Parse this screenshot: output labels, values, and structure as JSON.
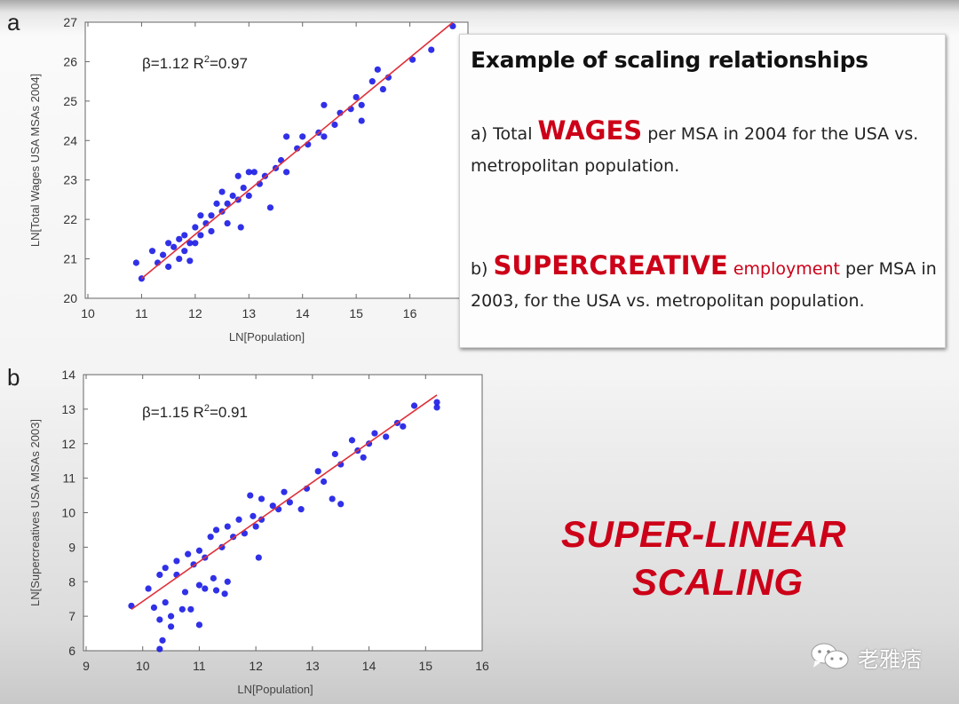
{
  "panels": {
    "a": "a",
    "b": "b"
  },
  "textbox": {
    "title": "Example of scaling relationships",
    "a_prefix": "a) Total",
    "a_highlight": "WAGES",
    "a_rest": "per MSA in 2004 for the USA vs. metropolitan population.",
    "b_prefix": "b)",
    "b_highlight": "SUPERCREATIVE",
    "b_red": "employment",
    "b_rest": "per MSA in 2003, for the USA vs. metropolitan population."
  },
  "slogan": {
    "line1": "SUPER-LINEAR",
    "line2": "SCALING"
  },
  "watermark": {
    "icon": "wechat-icon",
    "text": "老雅痞"
  },
  "colors": {
    "points": "#1a1ae6",
    "fit_line": "#e0303a",
    "accent": "#cc0018"
  },
  "chart_data": [
    {
      "type": "scatter",
      "panel": "a",
      "xlabel": "LN[Population]",
      "ylabel": "LN[Total Wages USA MSAs 2004]",
      "annotation": {
        "beta": "β=1.12",
        "r2_label": "R",
        "r2_exp": "2",
        "r2_value": "=0.97"
      },
      "xlim": [
        10,
        17
      ],
      "ylim": [
        20,
        27
      ],
      "xticks": [
        10,
        11,
        12,
        13,
        14,
        15,
        16
      ],
      "yticks": [
        20,
        21,
        22,
        23,
        24,
        25,
        26,
        27
      ],
      "fit": {
        "slope": 1.12,
        "intercept": 8.18,
        "x_range": [
          11.0,
          16.8
        ]
      },
      "points": [
        [
          10.9,
          20.9
        ],
        [
          11,
          20.5
        ],
        [
          11.2,
          21.2
        ],
        [
          11.3,
          20.9
        ],
        [
          11.4,
          21.1
        ],
        [
          11.5,
          21.4
        ],
        [
          11.5,
          20.8
        ],
        [
          11.6,
          21.3
        ],
        [
          11.7,
          21.5
        ],
        [
          11.7,
          21.0
        ],
        [
          11.8,
          21.6
        ],
        [
          11.8,
          21.2
        ],
        [
          11.9,
          21.4
        ],
        [
          11.9,
          20.95
        ],
        [
          12.0,
          21.8
        ],
        [
          12.0,
          21.4
        ],
        [
          12.1,
          22.1
        ],
        [
          12.1,
          21.6
        ],
        [
          12.2,
          21.9
        ],
        [
          12.3,
          22.1
        ],
        [
          12.3,
          21.7
        ],
        [
          12.4,
          22.4
        ],
        [
          12.5,
          22.7
        ],
        [
          12.5,
          22.2
        ],
        [
          12.6,
          22.4
        ],
        [
          12.6,
          21.9
        ],
        [
          12.7,
          22.6
        ],
        [
          12.8,
          23.1
        ],
        [
          12.8,
          22.5
        ],
        [
          12.85,
          21.8
        ],
        [
          12.9,
          22.8
        ],
        [
          13.0,
          23.2
        ],
        [
          13.0,
          22.6
        ],
        [
          13.1,
          23.2
        ],
        [
          13.2,
          22.9
        ],
        [
          13.3,
          23.1
        ],
        [
          13.4,
          22.3
        ],
        [
          13.5,
          23.3
        ],
        [
          13.6,
          23.5
        ],
        [
          13.7,
          24.1
        ],
        [
          13.7,
          23.2
        ],
        [
          13.9,
          23.8
        ],
        [
          14.0,
          24.1
        ],
        [
          14.1,
          23.9
        ],
        [
          14.3,
          24.2
        ],
        [
          14.4,
          24.1
        ],
        [
          14.4,
          24.9
        ],
        [
          14.6,
          24.4
        ],
        [
          14.7,
          24.7
        ],
        [
          14.9,
          24.8
        ],
        [
          15.0,
          25.1
        ],
        [
          15.1,
          24.5
        ],
        [
          15.1,
          24.9
        ],
        [
          15.3,
          25.5
        ],
        [
          15.4,
          25.8
        ],
        [
          15.5,
          25.3
        ],
        [
          15.6,
          25.6
        ],
        [
          16.05,
          26.05
        ],
        [
          16.4,
          26.3
        ],
        [
          16.8,
          26.9
        ]
      ]
    },
    {
      "type": "scatter",
      "panel": "b",
      "xlabel": "LN[Population]",
      "ylabel": "LN[Supercreatives USA MSAs 2003]",
      "annotation": {
        "beta": "β=1.15",
        "r2_label": "R",
        "r2_exp": "2",
        "r2_value": "=0.91"
      },
      "xlim": [
        9,
        16
      ],
      "ylim": [
        6,
        14
      ],
      "xticks": [
        9,
        10,
        11,
        12,
        13,
        14,
        15,
        16
      ],
      "yticks": [
        6,
        7,
        8,
        9,
        10,
        11,
        12,
        13,
        14
      ],
      "fit": {
        "slope": 1.15,
        "intercept": -4.07,
        "x_range": [
          9.8,
          15.2
        ]
      },
      "points": [
        [
          9.8,
          7.3
        ],
        [
          10.1,
          7.8
        ],
        [
          10.2,
          7.25
        ],
        [
          10.3,
          6.9
        ],
        [
          10.3,
          6.05
        ],
        [
          10.35,
          6.3
        ],
        [
          10.3,
          8.2
        ],
        [
          10.4,
          7.4
        ],
        [
          10.4,
          8.4
        ],
        [
          10.5,
          7.0
        ],
        [
          10.5,
          6.7
        ],
        [
          10.6,
          8.2
        ],
        [
          10.6,
          8.6
        ],
        [
          10.7,
          7.2
        ],
        [
          10.75,
          7.7
        ],
        [
          10.8,
          8.8
        ],
        [
          10.85,
          7.2
        ],
        [
          10.9,
          8.5
        ],
        [
          11.0,
          8.9
        ],
        [
          11.0,
          7.9
        ],
        [
          11.0,
          6.75
        ],
        [
          11.1,
          8.7
        ],
        [
          11.1,
          7.8
        ],
        [
          11.2,
          9.3
        ],
        [
          11.25,
          8.1
        ],
        [
          11.3,
          9.5
        ],
        [
          11.3,
          7.75
        ],
        [
          11.4,
          9.0
        ],
        [
          11.45,
          7.65
        ],
        [
          11.5,
          8.0
        ],
        [
          11.5,
          9.6
        ],
        [
          11.6,
          9.3
        ],
        [
          11.7,
          9.8
        ],
        [
          11.8,
          9.4
        ],
        [
          11.9,
          10.5
        ],
        [
          11.95,
          9.9
        ],
        [
          12.0,
          9.6
        ],
        [
          12.05,
          8.7
        ],
        [
          12.1,
          10.4
        ],
        [
          12.1,
          9.8
        ],
        [
          12.3,
          10.2
        ],
        [
          12.4,
          10.1
        ],
        [
          12.5,
          10.6
        ],
        [
          12.6,
          10.3
        ],
        [
          12.8,
          10.1
        ],
        [
          12.9,
          10.7
        ],
        [
          13.1,
          11.2
        ],
        [
          13.2,
          10.9
        ],
        [
          13.35,
          10.4
        ],
        [
          13.4,
          11.7
        ],
        [
          13.5,
          10.25
        ],
        [
          13.5,
          11.4
        ],
        [
          13.7,
          12.1
        ],
        [
          13.8,
          11.8
        ],
        [
          13.9,
          11.6
        ],
        [
          14.0,
          12.0
        ],
        [
          14.1,
          12.3
        ],
        [
          14.3,
          12.2
        ],
        [
          14.5,
          12.6
        ],
        [
          14.6,
          12.5
        ],
        [
          14.8,
          13.1
        ],
        [
          15.2,
          13.2
        ],
        [
          15.2,
          13.05
        ]
      ]
    }
  ]
}
